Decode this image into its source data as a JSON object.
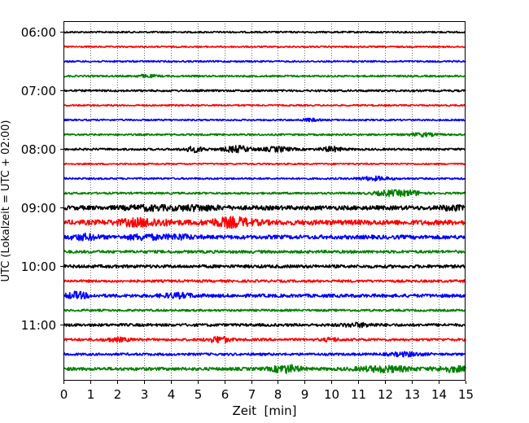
{
  "chart_data": {
    "type": "line",
    "title": "",
    "xlabel": "Zeit  [min]",
    "ylabel": "UTC (Lokalzeit = UTC + 02:00)",
    "xlim": [
      0,
      15
    ],
    "x_ticks": [
      "0",
      "1",
      "2",
      "3",
      "4",
      "5",
      "6",
      "7",
      "8",
      "9",
      "10",
      "11",
      "12",
      "13",
      "14",
      "15"
    ],
    "y_ticks": [
      "06:00",
      "07:00",
      "08:00",
      "09:00",
      "10:00",
      "11:00"
    ],
    "grid": "vertical-dotted",
    "trace_colors": [
      "#000000",
      "#ff0000",
      "#0000ff",
      "#008000"
    ],
    "series": [
      {
        "start": "06:00",
        "color": "#000000",
        "level": 1.0,
        "bursts": []
      },
      {
        "start": "06:15",
        "color": "#ff0000",
        "level": 0.9,
        "bursts": []
      },
      {
        "start": "06:30",
        "color": "#0000ff",
        "level": 1.0,
        "bursts": []
      },
      {
        "start": "06:45",
        "color": "#008000",
        "level": 1.1,
        "bursts": [
          {
            "t": 3.1,
            "w": 0.4,
            "a": 1.2
          }
        ]
      },
      {
        "start": "07:00",
        "color": "#000000",
        "level": 1.2,
        "bursts": []
      },
      {
        "start": "07:15",
        "color": "#ff0000",
        "level": 0.9,
        "bursts": []
      },
      {
        "start": "07:30",
        "color": "#0000ff",
        "level": 1.0,
        "bursts": [
          {
            "t": 9.2,
            "w": 0.3,
            "a": 1.5
          }
        ]
      },
      {
        "start": "07:45",
        "color": "#008000",
        "level": 1.1,
        "bursts": [
          {
            "t": 13.4,
            "w": 0.5,
            "a": 1.8
          }
        ]
      },
      {
        "start": "08:00",
        "color": "#000000",
        "level": 1.3,
        "bursts": [
          {
            "t": 4.9,
            "w": 0.4,
            "a": 2.8
          },
          {
            "t": 6.5,
            "w": 0.5,
            "a": 3.5
          },
          {
            "t": 8.0,
            "w": 0.5,
            "a": 2.6
          },
          {
            "t": 10.0,
            "w": 0.4,
            "a": 2.6
          }
        ]
      },
      {
        "start": "08:15",
        "color": "#ff0000",
        "level": 0.9,
        "bursts": []
      },
      {
        "start": "08:30",
        "color": "#0000ff",
        "level": 1.1,
        "bursts": [
          {
            "t": 11.6,
            "w": 0.6,
            "a": 2.0
          }
        ]
      },
      {
        "start": "08:45",
        "color": "#008000",
        "level": 1.2,
        "bursts": [
          {
            "t": 12.2,
            "w": 0.6,
            "a": 3.0
          },
          {
            "t": 13.0,
            "w": 0.4,
            "a": 2.4
          }
        ]
      },
      {
        "start": "09:00",
        "color": "#000000",
        "level": 2.6,
        "bursts": [
          {
            "t": 3.2,
            "w": 0.8,
            "a": 2.0
          },
          {
            "t": 5.0,
            "w": 0.8,
            "a": 2.2
          },
          {
            "t": 14.5,
            "w": 0.4,
            "a": 2.0
          }
        ]
      },
      {
        "start": "09:15",
        "color": "#ff0000",
        "level": 3.0,
        "bursts": [
          {
            "t": 3.0,
            "w": 0.9,
            "a": 3.5
          },
          {
            "t": 6.3,
            "w": 0.8,
            "a": 4.5
          }
        ]
      },
      {
        "start": "09:30",
        "color": "#0000ff",
        "level": 2.4,
        "bursts": [
          {
            "t": 0.8,
            "w": 0.5,
            "a": 2.6
          },
          {
            "t": 3.0,
            "w": 0.6,
            "a": 2.4
          },
          {
            "t": 4.3,
            "w": 0.5,
            "a": 2.2
          }
        ]
      },
      {
        "start": "09:45",
        "color": "#008000",
        "level": 1.7,
        "bursts": []
      },
      {
        "start": "10:00",
        "color": "#000000",
        "level": 1.9,
        "bursts": []
      },
      {
        "start": "10:15",
        "color": "#ff0000",
        "level": 1.5,
        "bursts": []
      },
      {
        "start": "10:30",
        "color": "#0000ff",
        "level": 2.0,
        "bursts": [
          {
            "t": 0.5,
            "w": 0.4,
            "a": 3.5
          },
          {
            "t": 4.3,
            "w": 0.6,
            "a": 2.2
          }
        ]
      },
      {
        "start": "10:45",
        "color": "#008000",
        "level": 1.3,
        "bursts": []
      },
      {
        "start": "11:00",
        "color": "#000000",
        "level": 1.7,
        "bursts": [
          {
            "t": 11.0,
            "w": 0.6,
            "a": 1.8
          }
        ]
      },
      {
        "start": "11:15",
        "color": "#ff0000",
        "level": 1.5,
        "bursts": [
          {
            "t": 2.0,
            "w": 0.5,
            "a": 1.8
          },
          {
            "t": 5.8,
            "w": 0.4,
            "a": 3.5
          },
          {
            "t": 10.0,
            "w": 0.3,
            "a": 1.8
          }
        ]
      },
      {
        "start": "11:30",
        "color": "#0000ff",
        "level": 1.5,
        "bursts": [
          {
            "t": 12.8,
            "w": 0.6,
            "a": 2.0
          }
        ]
      },
      {
        "start": "11:45",
        "color": "#008000",
        "level": 1.9,
        "bursts": [
          {
            "t": 8.3,
            "w": 0.5,
            "a": 4.2
          },
          {
            "t": 12.0,
            "w": 1.0,
            "a": 3.0
          },
          {
            "t": 14.5,
            "w": 0.6,
            "a": 2.8
          }
        ]
      }
    ]
  }
}
